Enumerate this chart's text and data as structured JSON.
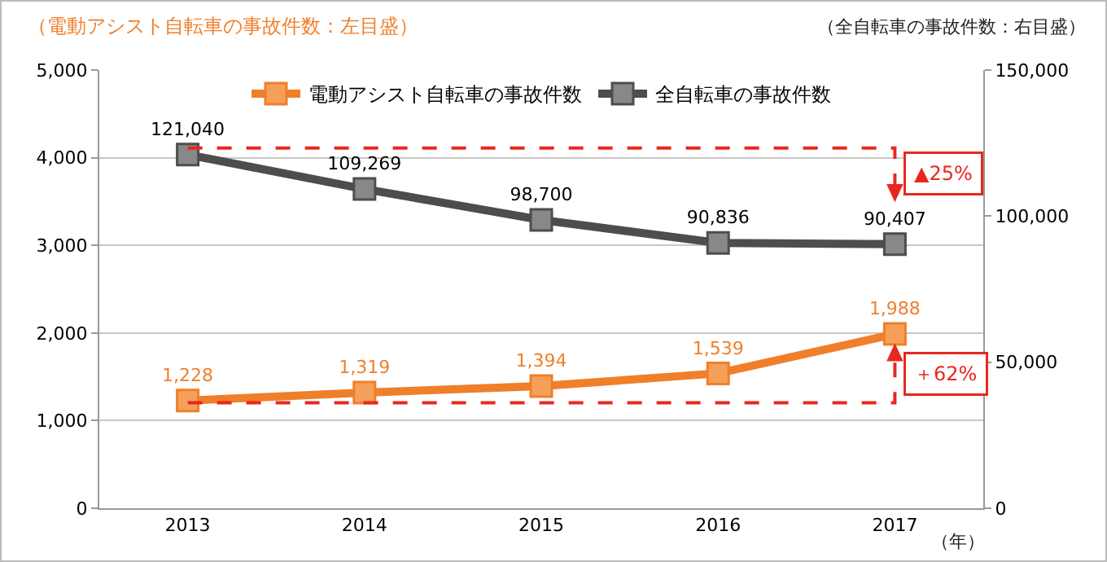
{
  "chart_data": {
    "type": "line",
    "ylabel": "（電動アシスト自転車の事故件数：左目盛）",
    "y2label": "（全自転車の事故件数：右目盛）",
    "xlabel": "（年）",
    "categories": [
      "2013",
      "2014",
      "2015",
      "2016",
      "2017"
    ],
    "series": [
      {
        "name": "電動アシスト自転車の事故件数",
        "color": "#f07f2a",
        "values": [
          1228,
          1319,
          1394,
          1539,
          1988
        ],
        "value_labels": [
          "1,228",
          "1,319",
          "1,394",
          "1,539",
          "1,988"
        ]
      },
      {
        "name": "全自転車の事故件数",
        "color": "#4d4d4d",
        "axis": "y2",
        "values": [
          121040,
          109269,
          98700,
          90836,
          90407
        ],
        "value_labels": [
          "121,040",
          "109,269",
          "98,700",
          "90,836",
          "90,407"
        ]
      }
    ],
    "ylim": [
      0,
      5000
    ],
    "yticks": [
      0,
      {
        "value": 1000,
        "label": "1,000"
      },
      {
        "value": 2000,
        "label": "2,000"
      },
      {
        "value": 3000,
        "label": "3,000"
      },
      {
        "value": 4000,
        "label": "4,000"
      },
      {
        "value": 5000,
        "label": "5,000"
      }
    ],
    "y2lim": [
      0,
      150000
    ],
    "y2ticks": [
      0,
      {
        "value": 50000,
        "label": "50,000"
      },
      {
        "value": 100000,
        "label": "100,000"
      },
      {
        "value": 150000,
        "label": "150,000"
      }
    ],
    "annotations": [
      "▲25%",
      "＋62%"
    ],
    "grid": "y",
    "legend": "top",
    "marker": "square",
    "line_style": "solid"
  }
}
